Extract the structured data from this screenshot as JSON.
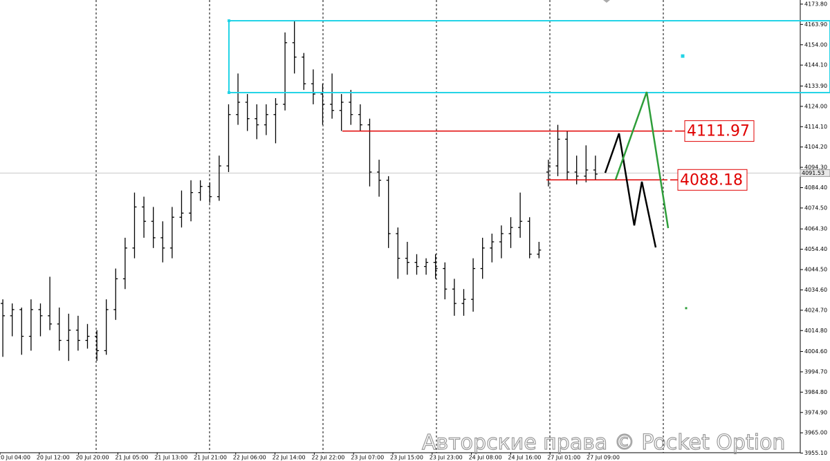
{
  "chart_data": {
    "type": "ohlc",
    "bar_color": "#000000",
    "open": [
      4028,
      4022,
      4025,
      4012,
      4025,
      4022,
      4018,
      4010,
      4015,
      4010,
      4012,
      4005,
      4025,
      4040,
      4055,
      4075,
      4068,
      4060,
      4055,
      4070,
      4072,
      4082,
      4085,
      4080,
      4095,
      4120,
      4126,
      4118,
      4115,
      4120,
      4125,
      4155,
      4148,
      4135,
      4130,
      4125,
      4122,
      4126,
      4120,
      4115,
      4092,
      4088,
      4062,
      4050,
      4048,
      4046,
      4048,
      4045,
      4035,
      4028,
      4030,
      4045,
      4055,
      4058,
      4062,
      4065,
      4068,
      4052,
      4092,
      4095,
      4108,
      4092,
      4090,
      4093
    ],
    "high": [
      4030,
      4028,
      4026,
      4030,
      4028,
      4041,
      4026,
      4023,
      4022,
      4018,
      4015,
      4030,
      4045,
      4060,
      4082,
      4080,
      4075,
      4068,
      4075,
      4083,
      4088,
      4088,
      4087,
      4100,
      4125,
      4140,
      4130,
      4125,
      4125,
      4128,
      4160,
      4166,
      4150,
      4142,
      4135,
      4140,
      4130,
      4132,
      4125,
      4118,
      4098,
      4090,
      4065,
      4058,
      4052,
      4050,
      4052,
      4048,
      4040,
      4035,
      4050,
      4060,
      4062,
      4066,
      4070,
      4082,
      4070,
      4058,
      4098,
      4115,
      4112,
      4100,
      4105,
      4100
    ],
    "low": [
      4002,
      4012,
      4003,
      4005,
      4012,
      4015,
      4005,
      4000,
      4005,
      4006,
      4000,
      4003,
      4020,
      4035,
      4050,
      4060,
      4055,
      4048,
      4050,
      4065,
      4068,
      4078,
      4077,
      4078,
      4092,
      4115,
      4112,
      4108,
      4110,
      4106,
      4122,
      4140,
      4132,
      4125,
      4115,
      4118,
      4112,
      4115,
      4112,
      4085,
      4080,
      4055,
      4040,
      4042,
      4042,
      4042,
      4040,
      4030,
      4022,
      4022,
      4024,
      4040,
      4048,
      4050,
      4055,
      4060,
      4050,
      4050,
      4085,
      4090,
      4088,
      4086,
      4087,
      4088
    ],
    "close": [
      4022,
      4025,
      4012,
      4025,
      4022,
      4018,
      4010,
      4015,
      4010,
      4012,
      4005,
      4025,
      4040,
      4055,
      4075,
      4068,
      4060,
      4055,
      4070,
      4072,
      4082,
      4085,
      4080,
      4095,
      4120,
      4126,
      4118,
      4115,
      4120,
      4125,
      4155,
      4148,
      4135,
      4130,
      4125,
      4122,
      4126,
      4120,
      4115,
      4092,
      4088,
      4062,
      4050,
      4048,
      4046,
      4048,
      4045,
      4035,
      4028,
      4030,
      4045,
      4055,
      4058,
      4062,
      4065,
      4068,
      4052,
      4054,
      4095,
      4108,
      4092,
      4090,
      4093,
      4091
    ],
    "ylim": [
      3955.3,
      4175.8
    ],
    "yticks": [
      {
        "value": 4173.8,
        "label": "4173.80"
      },
      {
        "value": 4163.9,
        "label": "4163.90"
      },
      {
        "value": 4154,
        "label": "4154.00"
      },
      {
        "value": 4144.1,
        "label": "4144.10"
      },
      {
        "value": 4133.9,
        "label": "4133.90"
      },
      {
        "value": 4124,
        "label": "4124.00"
      },
      {
        "value": 4114.1,
        "label": "4114.10"
      },
      {
        "value": 4104.2,
        "label": "4104.20"
      },
      {
        "value": 4094.3,
        "label": "4094.30"
      },
      {
        "value": 4084.4,
        "label": "4084.40"
      },
      {
        "value": 4074.5,
        "label": "4074.50"
      },
      {
        "value": 4064.3,
        "label": "4064.30"
      },
      {
        "value": 4054.4,
        "label": "4054.40"
      },
      {
        "value": 4044.5,
        "label": "4044.50"
      },
      {
        "value": 4034.6,
        "label": "4034.60"
      },
      {
        "value": 4024.7,
        "label": "4024.70"
      },
      {
        "value": 4014.8,
        "label": "4014.80"
      },
      {
        "value": 4004.6,
        "label": "4004.60"
      },
      {
        "value": 3994.7,
        "label": "3994.70"
      },
      {
        "value": 3984.8,
        "label": "3984.80"
      },
      {
        "value": 3974.9,
        "label": "3974.90"
      },
      {
        "value": 3965,
        "label": "3965.00"
      },
      {
        "value": 3955.1,
        "label": "3955.10"
      }
    ],
    "x_labels": [
      "20 Jul 04:00",
      "20 Jul 12:00",
      "20 Jul 20:00",
      "21 Jul 05:00",
      "21 Jul 13:00",
      "21 Jul 21:00",
      "22 Jul 06:00",
      "22 Jul 14:00",
      "22 Jul 22:00",
      "23 Jul 07:00",
      "23 Jul 15:00",
      "23 Jul 23:00",
      "24 Jul 08:00",
      "24 Jul 16:00",
      "27 Jul 01:00",
      "27 Jul 09:00"
    ],
    "current_price": 4091.53,
    "zone": {
      "top": 4165.7,
      "bottom": 4130.7,
      "color": "#22d3e6"
    },
    "levels": [
      {
        "value": 4111.97,
        "color": "#e00000"
      },
      {
        "value": 4088.18,
        "color": "#e00000"
      }
    ],
    "paths": [
      {
        "color": "#000000",
        "values": [
          4091.6,
          4110.8,
          4066,
          4087.3,
          4055.3
        ]
      },
      {
        "color": "#2e9e3a",
        "values": [
          4088.3,
          4131,
          4064.7
        ]
      }
    ],
    "markers": [
      {
        "value": 4148.5,
        "color": "#22d3e6"
      },
      {
        "value": 4025.7,
        "color": "#2e9e3a"
      }
    ],
    "watermark": "Авторские права © Pocket Option"
  }
}
